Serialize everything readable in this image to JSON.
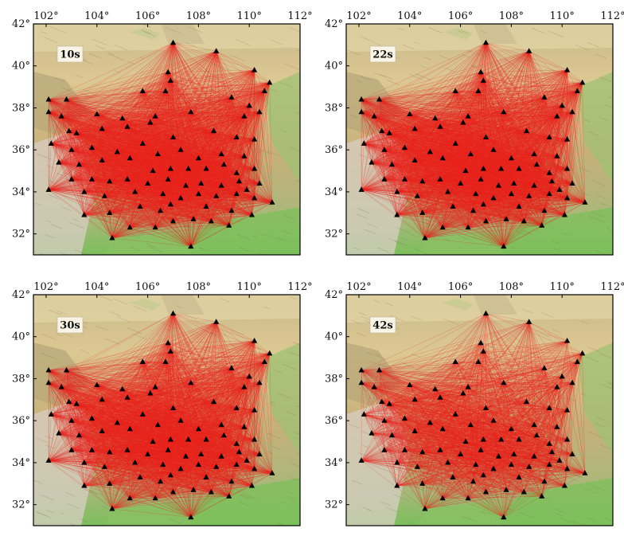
{
  "figure": {
    "x_ticks": [
      "102°",
      "104°",
      "106°",
      "108°",
      "110°",
      "112°"
    ],
    "y_ticks": [
      "42°",
      "40°",
      "38°",
      "36°",
      "34°",
      "32°"
    ],
    "lon_range": [
      101.5,
      112.0
    ],
    "lat_range": [
      31.0,
      42.0
    ],
    "path_color": "#e8231c",
    "station_color": "#000000",
    "panels": [
      {
        "label": "10s",
        "path_density": 1.0
      },
      {
        "label": "22s",
        "path_density": 1.0
      },
      {
        "label": "30s",
        "path_density": 0.9
      },
      {
        "label": "42s",
        "path_density": 0.55
      }
    ]
  }
}
